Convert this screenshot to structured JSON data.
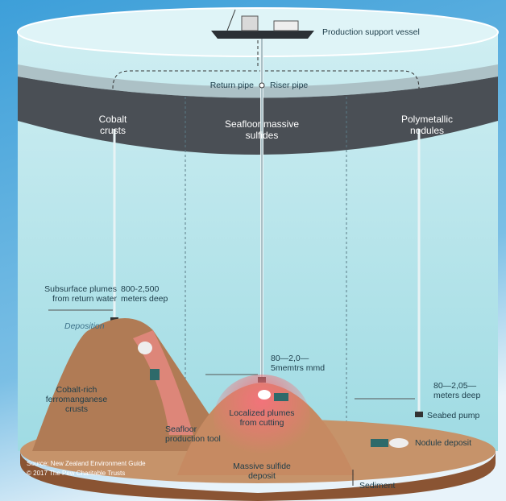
{
  "vessel": {
    "label": "Production support vessel"
  },
  "pipes": {
    "return": "Return pipe",
    "riser": "Riser pipe"
  },
  "zones": [
    {
      "lines": [
        "Cobalt",
        "crusts"
      ]
    },
    {
      "lines": [
        "Seafloor massive",
        "sulfides"
      ]
    },
    {
      "lines": [
        "Polymetallic",
        "nodules"
      ]
    }
  ],
  "callouts": {
    "subsurface_plumes": {
      "lines": [
        "Subsurface plumes",
        "from return water"
      ]
    },
    "depth_left": {
      "lines": [
        "800-2,500",
        "meters deep"
      ]
    },
    "deposition": "Deposition",
    "depth_center": {
      "lines": [
        "80—2,0—",
        "5memtrs mmd"
      ]
    },
    "depth_right": {
      "lines": [
        "80—2,05—",
        "meters deep"
      ]
    },
    "seabed_pump": "Seabed pump",
    "cobalt_rich": {
      "lines": [
        "Cobalt-rich",
        "ferromanganese",
        "crusts"
      ]
    },
    "production_tool": {
      "lines": [
        "Seafloor",
        "production tool"
      ]
    },
    "localized_plumes": {
      "lines": [
        "Localized plumes",
        "from cutting"
      ]
    },
    "nodule_deposit": "Nodule deposit",
    "massive_sulfide": {
      "lines": [
        "Massive sulfide",
        "deposit"
      ]
    },
    "sediment": "Sediment"
  },
  "footer": {
    "source": "Source: New Zealand Environment Guide",
    "copyright": "© 2017 The Pew Charitable Trusts"
  }
}
